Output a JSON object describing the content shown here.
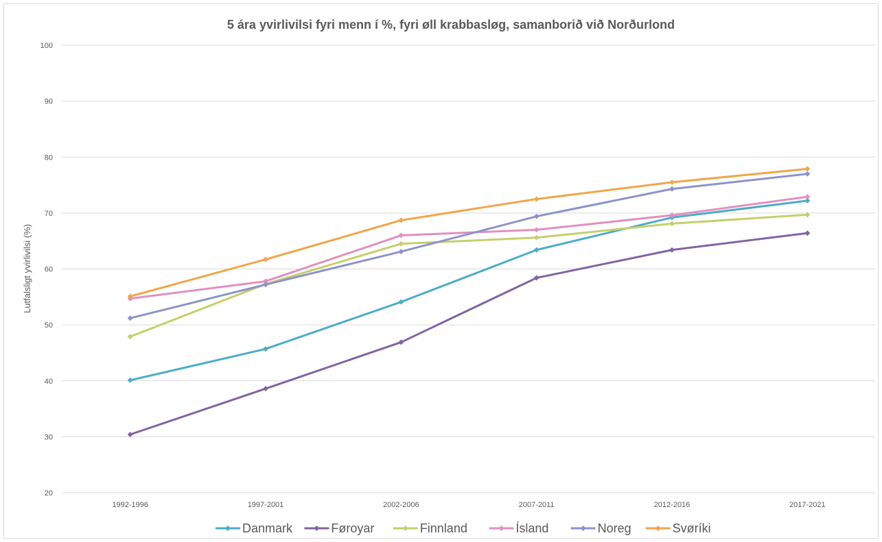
{
  "chart_data": {
    "type": "line",
    "title": "5 ára yvirlivilsi fyri menn í %, fyri øll krabbasløg, samanborið við Norðurlond",
    "xlabel": "",
    "ylabel": "Lutfalsligt yvirlivilsi (%)",
    "ylim": [
      20,
      100
    ],
    "yticks": [
      20,
      30,
      40,
      50,
      60,
      70,
      80,
      90,
      100
    ],
    "grid": true,
    "legend_position": "bottom",
    "categories": [
      "1992-1996",
      "1997-2001",
      "2002-2006",
      "2007-2011",
      "2012-2016",
      "2017-2021"
    ],
    "series": [
      {
        "name": "Danmark",
        "color": "#4bacc6",
        "values": [
          40.1,
          45.7,
          54.1,
          63.4,
          69.2,
          72.2
        ]
      },
      {
        "name": "Føroyar",
        "color": "#8064a2",
        "values": [
          30.4,
          38.6,
          46.9,
          58.4,
          63.4,
          66.4
        ]
      },
      {
        "name": "Finnland",
        "color": "#c3d06b",
        "values": [
          47.9,
          57.3,
          64.5,
          65.6,
          68.1,
          69.7
        ]
      },
      {
        "name": "Ísland",
        "color": "#e08fc0",
        "values": [
          54.7,
          57.8,
          66.0,
          67.0,
          69.6,
          72.9
        ]
      },
      {
        "name": "Noreg",
        "color": "#8b93c9",
        "values": [
          51.2,
          57.2,
          63.1,
          69.4,
          74.3,
          77.0
        ]
      },
      {
        "name": "Svøríki",
        "color": "#f2a547",
        "values": [
          55.1,
          61.7,
          68.7,
          72.5,
          75.5,
          77.9
        ]
      }
    ]
  }
}
